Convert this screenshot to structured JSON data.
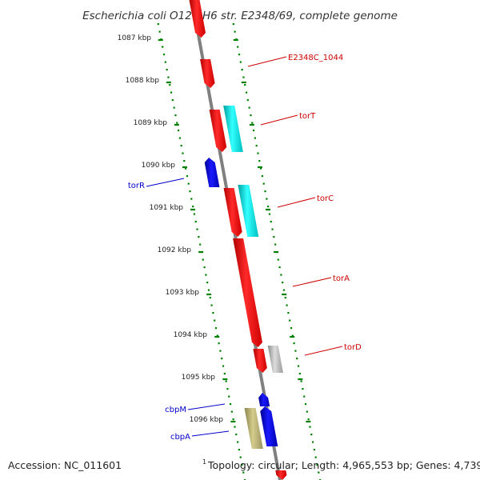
{
  "title": "Escherichia coli O127:H6 str. E2348/69, complete genome",
  "footer": {
    "accession": "Accession: NC_011601",
    "topology": "Topology: circular; Length: 4,965,553 bp; Genes: 4,739",
    "topology_marker": "1"
  },
  "colors": {
    "forward_gene": "#ff0000",
    "reverse_gene": "#0000ee",
    "rna": "#00e5e5",
    "other": "#b0b0b0",
    "pseudo": "#b8b070",
    "backbone": "#808080",
    "ruler": "#008000",
    "forward_label": "#cc0000",
    "reverse_label": "#0000cc"
  },
  "kbp_labels": [
    "1087 kbp",
    "1088 kbp",
    "1089 kbp",
    "1090 kbp",
    "1091 kbp",
    "1092 kbp",
    "1093 kbp",
    "1094 kbp",
    "1095 kbp",
    "1096 kbp"
  ],
  "genes": [
    {
      "label": "E2348C_1044",
      "strand": "forward"
    },
    {
      "label": "torT",
      "strand": "forward"
    },
    {
      "label": "torC",
      "strand": "forward"
    },
    {
      "label": "torA",
      "strand": "forward"
    },
    {
      "label": "torD",
      "strand": "forward"
    },
    {
      "label": "torR",
      "strand": "reverse"
    },
    {
      "label": "cbpM",
      "strand": "reverse"
    },
    {
      "label": "cbpA",
      "strand": "reverse"
    }
  ]
}
